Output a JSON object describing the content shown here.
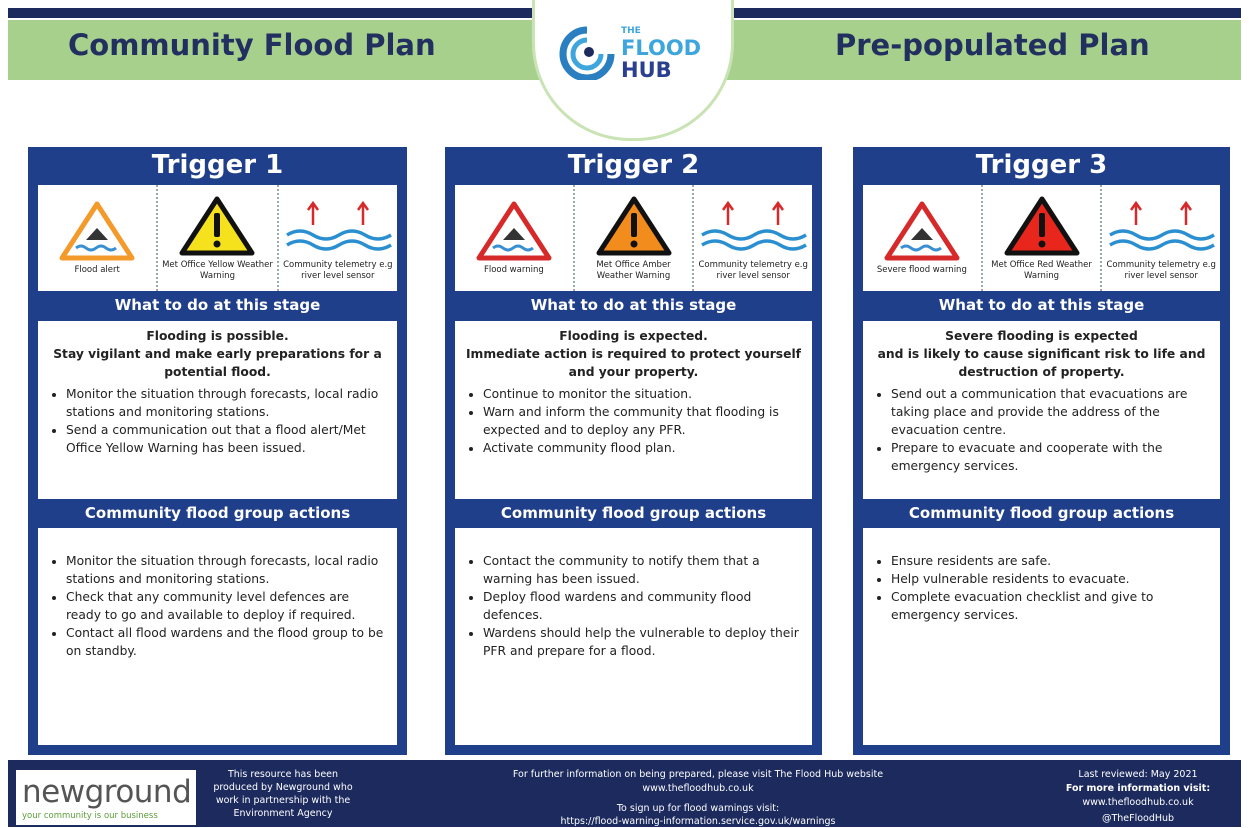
{
  "header": {
    "left_title": "Community Flood Plan",
    "right_title": "Pre-populated Plan",
    "logo_the": "THE",
    "logo_flood": "FLOOD",
    "logo_hub": "HUB"
  },
  "triggers": [
    {
      "title": "Trigger 1",
      "icons": [
        "Flood alert",
        "Met Office Yellow Weather Warning",
        "Community telemetry e.g river level sensor"
      ],
      "stage_heading": "What to do at this stage",
      "stage_intro": [
        "Flooding is possible.",
        "Stay vigilant and make early preparations for a potential flood."
      ],
      "stage_bullets": [
        "Monitor the situation through forecasts, local radio stations and monitoring stations.",
        "Send a communication out that a flood alert/Met Office Yellow Warning has been issued."
      ],
      "actions_heading": "Community flood group actions",
      "actions_bullets": [
        "Monitor the situation through forecasts, local radio stations and monitoring stations.",
        "Check that any community level defences are ready to go and available to deploy if required.",
        "Contact all flood wardens and the flood group to be on standby."
      ]
    },
    {
      "title": "Trigger 2",
      "icons": [
        "Flood warning",
        "Met Office Amber Weather Warning",
        "Community telemetry e.g river level sensor"
      ],
      "stage_heading": "What to do at this stage",
      "stage_intro": [
        "Flooding is expected.",
        "Immediate action is required to protect yourself and your property."
      ],
      "stage_bullets": [
        "Continue to monitor the situation.",
        "Warn and inform the community that flooding is expected and to deploy any PFR.",
        "Activate community flood plan."
      ],
      "actions_heading": "Community flood group actions",
      "actions_bullets": [
        "Contact the community to notify them that a warning has been issued.",
        "Deploy flood wardens and community flood defences.",
        "Wardens should help the vulnerable to deploy their PFR and prepare for a flood."
      ]
    },
    {
      "title": "Trigger 3",
      "icons": [
        "Severe flood warning",
        "Met Office Red Weather Warning",
        "Community telemetry e.g river level sensor"
      ],
      "stage_heading": "What to do at this stage",
      "stage_intro": [
        "Severe flooding is expected",
        "and is likely to cause significant risk to life and destruction of property."
      ],
      "stage_bullets": [
        "Send out a communication that evacuations are taking place and provide the address of the evacuation centre.",
        "Prepare to evacuate and cooperate with the emergency services."
      ],
      "actions_heading": "Community flood group actions",
      "actions_bullets": [
        "Ensure residents are safe.",
        "Help vulnerable residents to evacuate.",
        "Complete evacuation checklist and give to emergency services."
      ]
    }
  ],
  "footer": {
    "brand": "newground",
    "tagline": "your community is our business",
    "credit": "This resource has been produced by Newground who work in partnership with the Environment Agency",
    "info": "For further information on being prepared, please visit The Flood Hub website",
    "info_url": "www.thefloodhub.co.uk",
    "signup": "To sign up for flood warnings visit:",
    "signup_url": "https://flood-warning-information.service.gov.uk/warnings",
    "last_reviewed": "Last reviewed: May 2021",
    "more_info": "For more information visit:",
    "website": "www.thefloodhub.co.uk",
    "social": "@TheFloodHub"
  }
}
